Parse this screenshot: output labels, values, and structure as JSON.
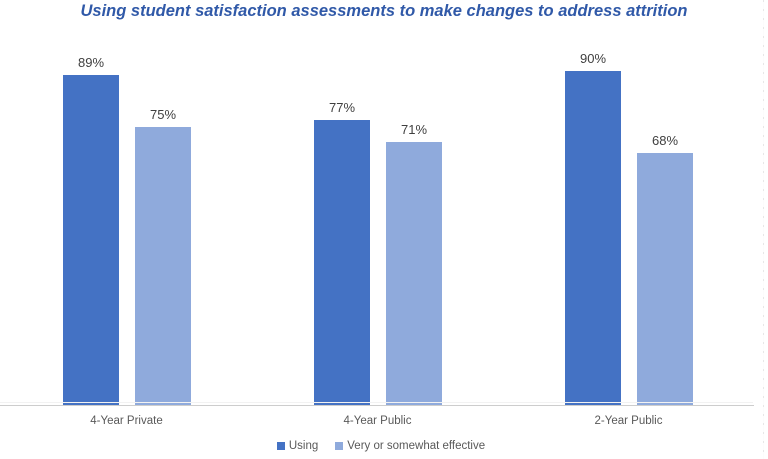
{
  "chart_data": {
    "type": "bar",
    "title": "Using student satisfaction assessments to make changes to address attrition",
    "categories": [
      "4-Year Private",
      "4-Year Public",
      "2-Year Public"
    ],
    "series": [
      {
        "name": "Using",
        "color": "#4472C4",
        "values": [
          89,
          77,
          90
        ],
        "labels": [
          "89%",
          "77%",
          "90%"
        ]
      },
      {
        "name": "Very or somewhat effective",
        "color": "#8FAADC",
        "values": [
          75,
          71,
          68
        ],
        "labels": [
          "75%",
          "71%",
          "68%"
        ]
      }
    ],
    "ylabel": "",
    "xlabel": "",
    "ylim": [
      0,
      100
    ],
    "grid": false,
    "value_axis_visible": false,
    "legend_position": "bottom",
    "colors": {
      "title": "#3059A8",
      "series_1": "#4472C4",
      "series_2": "#8FAADC",
      "data_label": "#404040",
      "category_label": "#595959",
      "legend_label": "#595959",
      "axis_line": "#CBCBCB"
    }
  }
}
